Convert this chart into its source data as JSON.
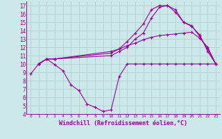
{
  "bg_color": "#cce8e8",
  "line_color": "#990099",
  "grid_color": "#aacccc",
  "xlabel": "Windchill (Refroidissement éolien,°C)",
  "xlabel_color": "#990099",
  "ylim": [
    4,
    17.5
  ],
  "xlim": [
    -0.5,
    23.5
  ],
  "line1_x": [
    0,
    1,
    2,
    3,
    4,
    5,
    6,
    7,
    8,
    9,
    10,
    11,
    12,
    13,
    14,
    15,
    16,
    17,
    18,
    19,
    20,
    21,
    22,
    23
  ],
  "line1_y": [
    8.8,
    10.0,
    10.6,
    9.9,
    9.2,
    7.5,
    6.8,
    5.2,
    4.8,
    4.3,
    4.5,
    8.5,
    10.0,
    10.0,
    10.0,
    10.0,
    10.0,
    10.0,
    10.0,
    10.0,
    10.0,
    10.0,
    10.0,
    10.0
  ],
  "line2_x": [
    1,
    2,
    3,
    10,
    11,
    12,
    13,
    14,
    15,
    16,
    17,
    18,
    19,
    20,
    21,
    22,
    23
  ],
  "line2_y": [
    10.0,
    10.6,
    10.6,
    11.5,
    11.8,
    12.2,
    12.5,
    12.9,
    13.2,
    13.4,
    13.5,
    13.6,
    13.7,
    13.8,
    13.1,
    12.0,
    10.0
  ],
  "line3_x": [
    1,
    2,
    3,
    10,
    11,
    12,
    13,
    14,
    15,
    16,
    17,
    18,
    19,
    20,
    21,
    22,
    23
  ],
  "line3_y": [
    10.0,
    10.6,
    10.6,
    11.3,
    11.8,
    12.7,
    13.7,
    14.8,
    16.5,
    17.0,
    17.0,
    16.2,
    15.0,
    14.6,
    13.3,
    11.8,
    10.0
  ],
  "line4_x": [
    1,
    2,
    3,
    10,
    11,
    12,
    13,
    14,
    15,
    16,
    17,
    18,
    19,
    20,
    21,
    22,
    23
  ],
  "line4_y": [
    10.0,
    10.6,
    10.6,
    11.0,
    11.5,
    12.0,
    13.0,
    13.7,
    15.5,
    16.8,
    17.0,
    16.5,
    15.0,
    14.5,
    13.5,
    11.5,
    10.0
  ]
}
